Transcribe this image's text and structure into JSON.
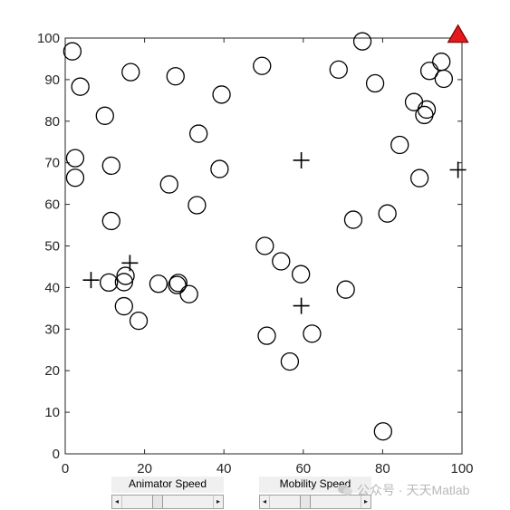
{
  "chart_data": {
    "type": "scatter",
    "title": "",
    "xlabel": "",
    "ylabel": "",
    "xlim": [
      0,
      100
    ],
    "ylim": [
      0,
      100
    ],
    "xticks": [
      0,
      20,
      40,
      60,
      80,
      100
    ],
    "yticks": [
      0,
      10,
      20,
      30,
      40,
      50,
      60,
      70,
      80,
      90,
      100
    ],
    "grid": false,
    "colors": {
      "axis": "#262626",
      "marker": "#000000",
      "triangle_fill": "#e31a1c",
      "triangle_edge": "#7a0000"
    },
    "series": [
      {
        "marker": "circle",
        "x": [
          1.8,
          2.5,
          2.5,
          3.8,
          10,
          11.6,
          11.6,
          11,
          15.2,
          14.8,
          14.8,
          16.5,
          18.5,
          23.5,
          26.2,
          27.8,
          28.2,
          28.5,
          31.2,
          33.2,
          33.6,
          38.9,
          39.4,
          49.6,
          50.3,
          50.8,
          54.4,
          56.6,
          59.4,
          62.2,
          68.9,
          70.7,
          72.6,
          74.9,
          78.1,
          80.1,
          81.2,
          84.3,
          87.9,
          89.3,
          90.5,
          91.1,
          91.8,
          94.8,
          95.4
        ],
        "y": [
          96.8,
          66.4,
          71.1,
          88.3,
          81.3,
          69.3,
          56,
          41.2,
          42.8,
          41.3,
          35.5,
          91.8,
          32,
          40.9,
          64.8,
          90.8,
          40.6,
          41.1,
          38.4,
          59.8,
          77,
          68.5,
          86.4,
          93.3,
          50,
          28.4,
          46.3,
          22.2,
          43.2,
          28.9,
          92.4,
          39.5,
          56.3,
          99.2,
          89.1,
          5.4,
          57.8,
          74.3,
          84.6,
          66.3,
          81.5,
          82.8,
          92.1,
          94.3,
          90.2
        ]
      },
      {
        "marker": "plus",
        "x": [
          6.5,
          16.3,
          59.5,
          59.5,
          99
        ],
        "y": [
          41.8,
          45.9,
          70.6,
          35.6,
          68.3
        ]
      },
      {
        "marker": "triangle",
        "x": [
          99
        ],
        "y": [
          100.5
        ]
      }
    ]
  },
  "controls": {
    "animator": {
      "label": "Animator Speed",
      "left_arrow": "◂",
      "right_arrow": "▸",
      "value": 0.38
    },
    "mobility": {
      "label": "Mobility Speed",
      "left_arrow": "◂",
      "right_arrow": "▸",
      "value": 0.38
    }
  },
  "watermark": {
    "text": "公众号 · 天天Matlab"
  }
}
